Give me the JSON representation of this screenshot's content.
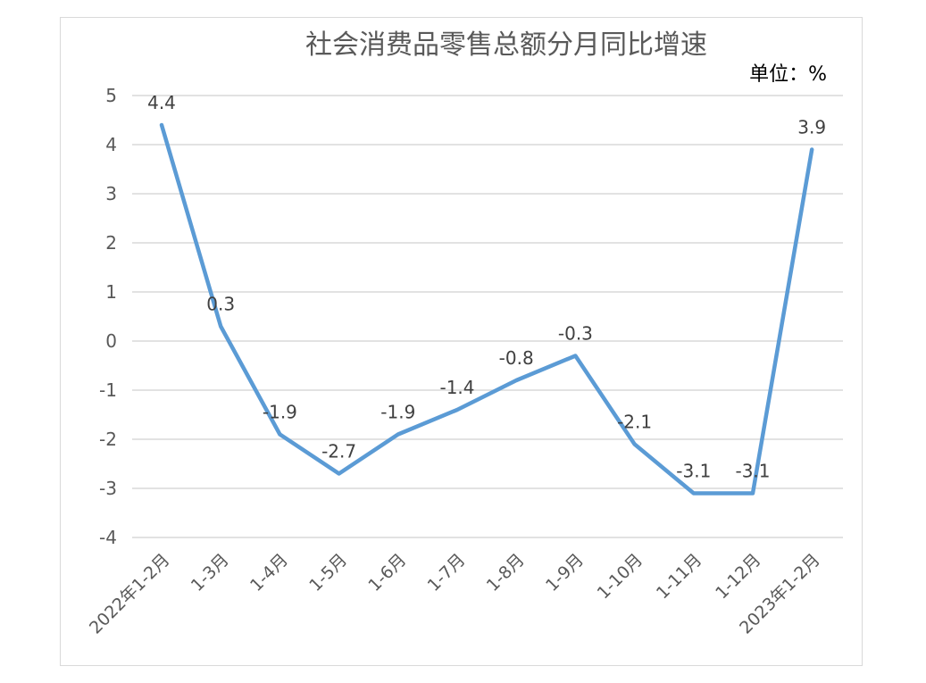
{
  "chart_data": {
    "type": "line",
    "title": "社会消费品零售总额分月同比增速",
    "unit_label": "单位：%",
    "categories": [
      "2022年1-2月",
      "1-3月",
      "1-4月",
      "1-5月",
      "1-6月",
      "1-7月",
      "1-8月",
      "1-9月",
      "1-10月",
      "1-11月",
      "1-12月",
      "2023年1-2月"
    ],
    "series": [
      {
        "values": [
          4.4,
          0.3,
          -1.9,
          -2.7,
          -1.9,
          -1.4,
          -0.8,
          -0.3,
          -2.1,
          -3.1,
          -3.1,
          3.9
        ]
      }
    ],
    "data_labels": [
      "4.4",
      "0.3",
      "-1.9",
      "-2.7",
      "-1.9",
      "-1.4",
      "-0.8",
      "-0.3",
      "-2.1",
      "-3.1",
      "-3.1",
      "3.9"
    ],
    "y_ticks": [
      "5",
      "4",
      "3",
      "2",
      "1",
      "0",
      "-1",
      "-2",
      "-3",
      "-4"
    ],
    "ylim": [
      -4,
      5
    ],
    "grid": true,
    "legend": "none",
    "line_color": "#5b9bd5"
  }
}
